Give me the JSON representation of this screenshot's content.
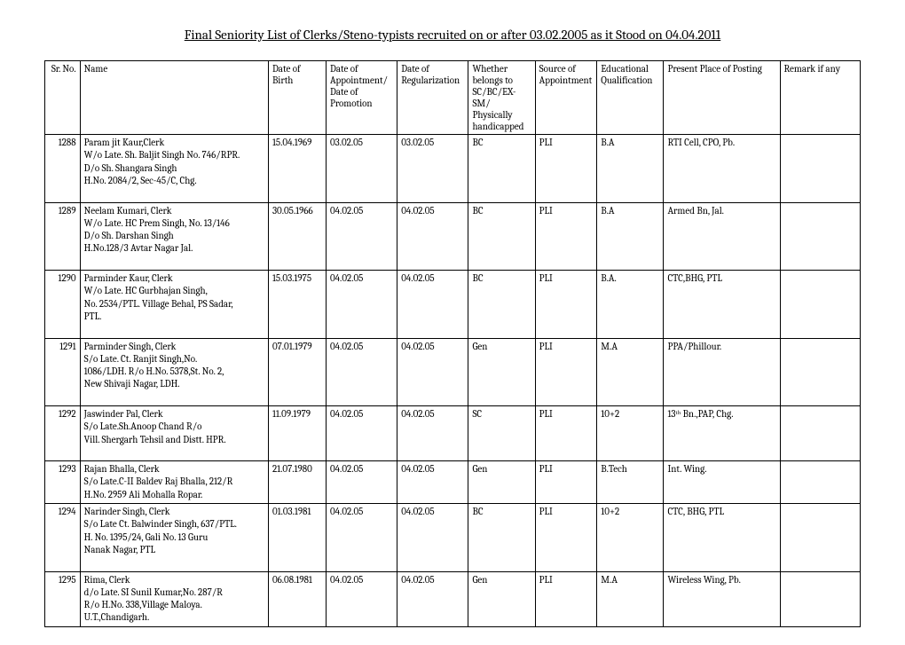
{
  "title": "Final Seniority List of  Clerks/Steno-typists recruited on or after 03.02.2005 as it Stood on 04.04.2011",
  "columns": [
    "Sr. No.",
    "Name",
    "Date of Birth",
    "Date of Appointment/ Date of Promotion",
    "Date of Regularization",
    "Whether belongs to SC/BC/EX-SM/ Physically handicapped",
    "Source of Appointment",
    "Educational Qualification",
    "Present Place of Posting",
    "Remark if any"
  ],
  "rows": [
    {
      "sr": "1288",
      "name_lines": [
        "Param jit Kaur,Clerk",
        "W/o Late. Sh. Baljit Singh No. 746/RPR.",
        "D/o Sh. Shangara Singh",
        " H.No. 2084/2,  Sec-45/C, Chg.",
        ""
      ],
      "dob": "15.04.1969",
      "appt": "03.02.05",
      "reg": "03.02.05",
      "cat": "BC",
      "src": "PLI",
      "edu": "B.A",
      "post": "RTI Cell, CPO, Pb.",
      "rem": ""
    },
    {
      "sr": "1289",
      "name_lines": [
        "Neelam Kumari,   Clerk",
        "W/o Late. HC Prem Singh, No. 13/146",
        "D/o Sh. Darshan Singh",
        "H.No.128/3 Avtar Nagar Jal.",
        ""
      ],
      "dob": "30.05.1966",
      "appt": "04.02.05",
      "reg": "04.02.05",
      "cat": "BC",
      "src": "PLI",
      "edu": "B.A",
      "post": "Armed Bn, Jal.",
      "rem": ""
    },
    {
      "sr": "1290",
      "name_lines": [
        "Parminder Kaur, Clerk",
        "W/o Late. HC Gurbhajan Singh,",
        " No. 2534/PTL. Village Behal, PS Sadar,",
        "PTL.",
        ""
      ],
      "dob": "15.03.1975",
      "appt": "04.02.05",
      "reg": "04.02.05",
      "cat": "BC",
      "src": "PLI",
      "edu": "B.A.",
      "post": "CTC,BHG, PTL",
      "rem": ""
    },
    {
      "sr": "1291",
      "name_lines": [
        "Parminder Singh, Clerk",
        "S/o Late. Ct. Ranjit Singh,No.",
        "1086/LDH. R/o H.No. 5378,St. No. 2,",
        "New Shivaji Nagar, LDH.",
        ""
      ],
      "dob": "07.01.1979",
      "appt": "04.02.05",
      "reg": "04.02.05",
      "cat": "Gen",
      "src": "PLI",
      "edu": "M.A",
      "post": "PPA/Phillour.",
      "rem": ""
    },
    {
      "sr": "1292",
      "name_lines": [
        "Jaswinder Pal, Clerk",
        "S/o Late.Sh.Anoop Chand R/o",
        "Vill. Shergarh Tehsil and Distt. HPR.",
        ""
      ],
      "dob": "11.09.1979",
      "appt": "04.02.05",
      "reg": "04.02.05",
      "cat": "SC",
      "src": "PLI",
      "edu": "10+2",
      "post": "13ᵗʰ Bn.,PAP, Chg.",
      "rem": ""
    },
    {
      "sr": "1293",
      "name_lines": [
        "Rajan Bhalla, Clerk",
        "S/o Late.C-II Baldev Raj Bhalla, 212/R",
        "H.No. 2959 Ali Mohalla Ropar."
      ],
      "dob": "21.07.1980",
      "appt": "04.02.05",
      "reg": "04.02.05",
      "cat": "Gen",
      "src": "PLI",
      "edu": "B.Tech",
      "post": "Int. Wing.",
      "rem": ""
    },
    {
      "sr": "1294",
      "name_lines": [
        "Narinder Singh, Clerk",
        "S/o Late Ct. Balwinder Singh, 637/PTL.",
        "H. No. 1395/24, Gali No. 13 Guru",
        "Nanak Nagar, PTL",
        ""
      ],
      "dob": "01.03.1981",
      "appt": "04.02.05",
      "reg": "04.02.05",
      "cat": "BC",
      "src": "PLI",
      "edu": "10+2",
      "post": "CTC, BHG, PTL",
      "rem": ""
    },
    {
      "sr": "1295",
      "name_lines": [
        "Rima, Clerk",
        "d/o Late. SI Sunil Kumar,No. 287/R",
        "R/o H.No. 338,Village Maloya.",
        "U.T.,Chandigarh."
      ],
      "dob": "06.08.1981",
      "appt": "04.02.05",
      "reg": "04.02.05",
      "cat": "Gen",
      "src": "PLI",
      "edu": "M.A",
      "post": "Wireless Wing, Pb.",
      "rem": ""
    }
  ]
}
